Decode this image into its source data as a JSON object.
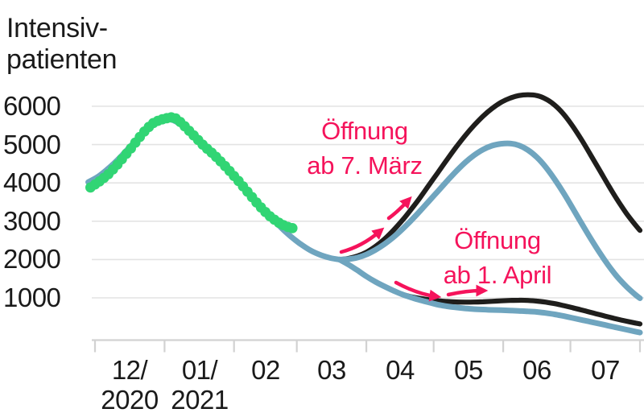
{
  "colors": {
    "background": "#ffffff",
    "accent_pink": "#f5135b",
    "reported_green": "#31d574",
    "model_blue": "#6fa5bf",
    "scenario_black": "#1f1e1c",
    "gridline": "#e3e3e3",
    "axis": "#d2d2d2",
    "text": "#1a1a1a"
  },
  "chart_data": {
    "type": "line",
    "title": "Intensivpatienten",
    "ylabel_lines": [
      "Intensiv-",
      "patienten"
    ],
    "ylim": [
      0,
      6600
    ],
    "grid": true,
    "y_ticks": [
      {
        "value": 6000,
        "label": "6000"
      },
      {
        "value": 5000,
        "label": "5000"
      },
      {
        "value": 4000,
        "label": "4000"
      },
      {
        "value": 3000,
        "label": "3000"
      },
      {
        "value": 2000,
        "label": "2000"
      },
      {
        "value": 1000,
        "label": "1000"
      }
    ],
    "x_months": [
      {
        "label_lines": [
          "12/",
          "2020"
        ],
        "start_day": 0
      },
      {
        "label_lines": [
          "01/",
          "2021"
        ],
        "start_day": 31
      },
      {
        "label_lines": [
          "02"
        ],
        "start_day": 62
      },
      {
        "label_lines": [
          "03"
        ],
        "start_day": 90
      },
      {
        "label_lines": [
          "04"
        ],
        "start_day": 121
      },
      {
        "label_lines": [
          "05"
        ],
        "start_day": 151
      },
      {
        "label_lines": [
          "06"
        ],
        "start_day": 182
      },
      {
        "label_lines": [
          "07"
        ],
        "start_day": 212
      }
    ],
    "x_axis_end_day": 243,
    "x_day0": "2020-12-01",
    "annotations": [
      {
        "id": "oeffnung-maerz",
        "lines": [
          "Öffnung",
          "ab 7. März"
        ],
        "color": "#f5135b"
      },
      {
        "id": "oeffnung-april",
        "lines": [
          "Öffnung",
          "ab 1. April"
        ],
        "color": "#f5135b"
      }
    ],
    "series": [
      {
        "id": "scenario-march7-black",
        "name": "Szenario Öffnung ab 7. März (schwarze Kurve)",
        "style": "line",
        "color": "#1f1e1c",
        "points": [
          [
            109,
            2000
          ],
          [
            113,
            2030
          ],
          [
            117,
            2090
          ],
          [
            121,
            2190
          ],
          [
            125,
            2340
          ],
          [
            129,
            2530
          ],
          [
            133,
            2760
          ],
          [
            137,
            3020
          ],
          [
            141,
            3310
          ],
          [
            145,
            3620
          ],
          [
            149,
            3950
          ],
          [
            153,
            4280
          ],
          [
            157,
            4610
          ],
          [
            161,
            4930
          ],
          [
            165,
            5230
          ],
          [
            169,
            5500
          ],
          [
            173,
            5740
          ],
          [
            177,
            5940
          ],
          [
            181,
            6100
          ],
          [
            185,
            6210
          ],
          [
            189,
            6280
          ],
          [
            193,
            6300
          ],
          [
            197,
            6280
          ],
          [
            201,
            6190
          ],
          [
            205,
            6030
          ],
          [
            209,
            5790
          ],
          [
            213,
            5480
          ],
          [
            217,
            5120
          ],
          [
            221,
            4730
          ],
          [
            225,
            4330
          ],
          [
            229,
            3930
          ],
          [
            233,
            3550
          ],
          [
            237,
            3200
          ],
          [
            241,
            2900
          ],
          [
            243,
            2760
          ]
        ]
      },
      {
        "id": "scenario-april1-black",
        "name": "Szenario Öffnung ab 1. April (schwarze Kurve)",
        "style": "line",
        "color": "#1f1e1c",
        "points": [
          [
            137,
            1090
          ],
          [
            141,
            1030
          ],
          [
            145,
            985
          ],
          [
            149,
            950
          ],
          [
            153,
            925
          ],
          [
            157,
            905
          ],
          [
            161,
            893
          ],
          [
            165,
            888
          ],
          [
            169,
            890
          ],
          [
            173,
            898
          ],
          [
            177,
            910
          ],
          [
            181,
            922
          ],
          [
            185,
            932
          ],
          [
            189,
            938
          ],
          [
            193,
            933
          ],
          [
            197,
            917
          ],
          [
            201,
            888
          ],
          [
            205,
            848
          ],
          [
            209,
            798
          ],
          [
            213,
            742
          ],
          [
            217,
            683
          ],
          [
            221,
            622
          ],
          [
            225,
            560
          ],
          [
            229,
            500
          ],
          [
            233,
            443
          ],
          [
            237,
            390
          ],
          [
            241,
            343
          ],
          [
            243,
            320
          ]
        ]
      },
      {
        "id": "model-fit-blue",
        "name": "Modellkurve (blau)",
        "style": "line",
        "color": "#6fa5bf",
        "points": [
          [
            -3,
            4020
          ],
          [
            1,
            4150
          ],
          [
            5,
            4330
          ],
          [
            9,
            4540
          ],
          [
            13,
            4780
          ],
          [
            17,
            5030
          ],
          [
            21,
            5280
          ],
          [
            25,
            5490
          ],
          [
            29,
            5620
          ],
          [
            33,
            5660
          ],
          [
            37,
            5570
          ],
          [
            41,
            5390
          ],
          [
            45,
            5170
          ],
          [
            49,
            4940
          ],
          [
            53,
            4710
          ],
          [
            57,
            4470
          ],
          [
            61,
            4230
          ],
          [
            65,
            3980
          ],
          [
            69,
            3720
          ],
          [
            73,
            3460
          ],
          [
            77,
            3200
          ],
          [
            81,
            2950
          ],
          [
            85,
            2720
          ],
          [
            89,
            2520
          ],
          [
            93,
            2350
          ],
          [
            97,
            2210
          ],
          [
            101,
            2110
          ],
          [
            105,
            2040
          ],
          [
            109,
            2000
          ]
        ]
      },
      {
        "id": "scenario-march7-blue",
        "name": "Szenario Öffnung ab 7. März (blaue Kurve)",
        "style": "line",
        "color": "#6fa5bf",
        "points": [
          [
            109,
            2000
          ],
          [
            113,
            2010
          ],
          [
            117,
            2050
          ],
          [
            121,
            2130
          ],
          [
            125,
            2250
          ],
          [
            129,
            2400
          ],
          [
            133,
            2580
          ],
          [
            137,
            2790
          ],
          [
            141,
            3020
          ],
          [
            145,
            3270
          ],
          [
            149,
            3530
          ],
          [
            153,
            3790
          ],
          [
            157,
            4050
          ],
          [
            161,
            4300
          ],
          [
            165,
            4530
          ],
          [
            169,
            4720
          ],
          [
            173,
            4870
          ],
          [
            177,
            4970
          ],
          [
            181,
            5020
          ],
          [
            185,
            5030
          ],
          [
            189,
            4980
          ],
          [
            193,
            4860
          ],
          [
            197,
            4670
          ],
          [
            201,
            4410
          ],
          [
            205,
            4090
          ],
          [
            209,
            3730
          ],
          [
            213,
            3340
          ],
          [
            217,
            2940
          ],
          [
            221,
            2550
          ],
          [
            225,
            2180
          ],
          [
            229,
            1840
          ],
          [
            233,
            1540
          ],
          [
            237,
            1290
          ],
          [
            241,
            1080
          ],
          [
            243,
            990
          ]
        ]
      },
      {
        "id": "scenario-april1-blue",
        "name": "Szenario Öffnung ab 1. April (blaue Kurve)",
        "style": "line",
        "color": "#6fa5bf",
        "points": [
          [
            109,
            2000
          ],
          [
            113,
            1870
          ],
          [
            117,
            1720
          ],
          [
            121,
            1560
          ],
          [
            125,
            1420
          ],
          [
            129,
            1300
          ],
          [
            133,
            1190
          ],
          [
            137,
            1090
          ],
          [
            141,
            1010
          ],
          [
            145,
            940
          ],
          [
            149,
            880
          ],
          [
            153,
            820
          ],
          [
            157,
            780
          ],
          [
            161,
            750
          ],
          [
            165,
            725
          ],
          [
            169,
            705
          ],
          [
            173,
            695
          ],
          [
            177,
            685
          ],
          [
            181,
            678
          ],
          [
            185,
            670
          ],
          [
            189,
            660
          ],
          [
            193,
            648
          ],
          [
            197,
            632
          ],
          [
            201,
            605
          ],
          [
            205,
            570
          ],
          [
            209,
            525
          ],
          [
            213,
            475
          ],
          [
            217,
            425
          ],
          [
            221,
            375
          ],
          [
            225,
            323
          ],
          [
            229,
            272
          ],
          [
            233,
            220
          ],
          [
            237,
            170
          ],
          [
            241,
            120
          ],
          [
            243,
            95
          ]
        ]
      },
      {
        "id": "reported-icu",
        "name": "Gemeldete Intensivpatienten (grüne Punkte)",
        "style": "dots",
        "color": "#31d574",
        "points": [
          [
            -2,
            3880
          ],
          [
            0,
            3960
          ],
          [
            2,
            4040
          ],
          [
            4,
            4130
          ],
          [
            6,
            4230
          ],
          [
            8,
            4350
          ],
          [
            10,
            4480
          ],
          [
            12,
            4620
          ],
          [
            14,
            4760
          ],
          [
            16,
            4900
          ],
          [
            18,
            5050
          ],
          [
            20,
            5200
          ],
          [
            22,
            5340
          ],
          [
            24,
            5460
          ],
          [
            26,
            5560
          ],
          [
            28,
            5620
          ],
          [
            30,
            5660
          ],
          [
            32,
            5690
          ],
          [
            34,
            5710
          ],
          [
            36,
            5680
          ],
          [
            38,
            5590
          ],
          [
            40,
            5480
          ],
          [
            42,
            5360
          ],
          [
            44,
            5240
          ],
          [
            46,
            5120
          ],
          [
            48,
            5000
          ],
          [
            50,
            4890
          ],
          [
            52,
            4790
          ],
          [
            54,
            4680
          ],
          [
            56,
            4560
          ],
          [
            58,
            4440
          ],
          [
            60,
            4310
          ],
          [
            62,
            4180
          ],
          [
            64,
            4050
          ],
          [
            66,
            3910
          ],
          [
            68,
            3770
          ],
          [
            70,
            3630
          ],
          [
            72,
            3490
          ],
          [
            74,
            3360
          ],
          [
            76,
            3240
          ],
          [
            78,
            3130
          ],
          [
            80,
            3040
          ],
          [
            82,
            2960
          ],
          [
            84,
            2900
          ],
          [
            86,
            2850
          ],
          [
            88,
            2820
          ]
        ]
      }
    ]
  }
}
